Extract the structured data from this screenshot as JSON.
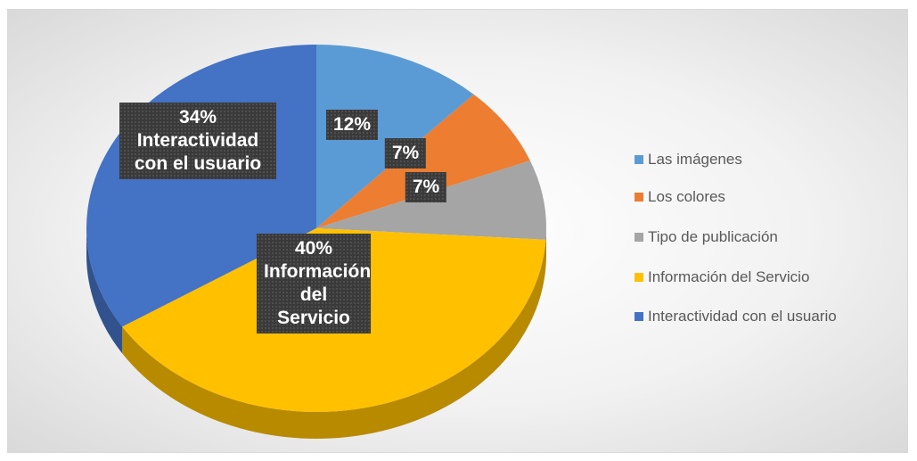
{
  "chart_data": {
    "type": "pie",
    "categories": [
      "Las imágenes",
      "Los colores",
      "Tipo de publicación",
      "Información del Servicio",
      "Interactividad con el usuario"
    ],
    "values": [
      12,
      7,
      7,
      40,
      34
    ],
    "value_labels": [
      "12%",
      "7%",
      "7%",
      "40%",
      "34%"
    ],
    "colors": [
      "#5b9bd5",
      "#ed7d31",
      "#a5a5a5",
      "#ffc000",
      "#4472c4"
    ],
    "legend": "right"
  }
}
